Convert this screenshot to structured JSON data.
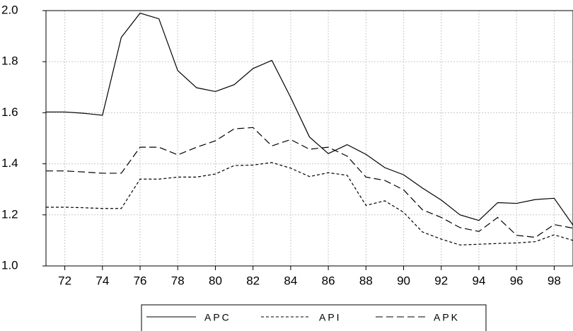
{
  "chart_data": {
    "type": "line",
    "x": [
      71,
      72,
      73,
      74,
      75,
      76,
      77,
      78,
      79,
      80,
      81,
      82,
      83,
      84,
      85,
      86,
      87,
      88,
      89,
      90,
      91,
      92,
      93,
      94,
      95,
      96,
      97,
      98,
      99
    ],
    "series": [
      {
        "name": "APC",
        "color": "#000000",
        "dash": "solid",
        "values": [
          1.603,
          1.603,
          1.598,
          1.59,
          1.895,
          1.99,
          1.968,
          1.765,
          1.698,
          1.683,
          1.71,
          1.773,
          1.805,
          1.66,
          1.505,
          1.44,
          1.475,
          1.437,
          1.385,
          1.357,
          1.305,
          1.258,
          1.2,
          1.178,
          1.248,
          1.245,
          1.26,
          1.265,
          1.16
        ]
      },
      {
        "name": "API",
        "color": "#000000",
        "dash": "short",
        "values": [
          1.23,
          1.23,
          1.228,
          1.225,
          1.225,
          1.34,
          1.34,
          1.348,
          1.348,
          1.36,
          1.393,
          1.395,
          1.405,
          1.383,
          1.35,
          1.365,
          1.355,
          1.237,
          1.255,
          1.21,
          1.133,
          1.105,
          1.082,
          1.085,
          1.088,
          1.09,
          1.095,
          1.122,
          1.1
        ]
      },
      {
        "name": "APK",
        "color": "#000000",
        "dash": "long",
        "values": [
          1.372,
          1.372,
          1.368,
          1.363,
          1.363,
          1.465,
          1.465,
          1.435,
          1.465,
          1.49,
          1.537,
          1.542,
          1.47,
          1.495,
          1.457,
          1.465,
          1.43,
          1.348,
          1.335,
          1.298,
          1.22,
          1.19,
          1.15,
          1.135,
          1.19,
          1.12,
          1.112,
          1.162,
          1.148
        ]
      }
    ],
    "xlim": [
      71,
      99
    ],
    "xticks": [
      72,
      74,
      76,
      78,
      80,
      82,
      84,
      86,
      88,
      90,
      92,
      94,
      96,
      98
    ],
    "ylim": [
      1.0,
      2.0
    ],
    "yticks": [
      {
        "value": 1.0,
        "label": "1.0"
      },
      1.2,
      1.4,
      1.6,
      1.8,
      {
        "value": 2.0,
        "label": "2.0"
      }
    ],
    "grid": true,
    "legend": "bottom"
  }
}
